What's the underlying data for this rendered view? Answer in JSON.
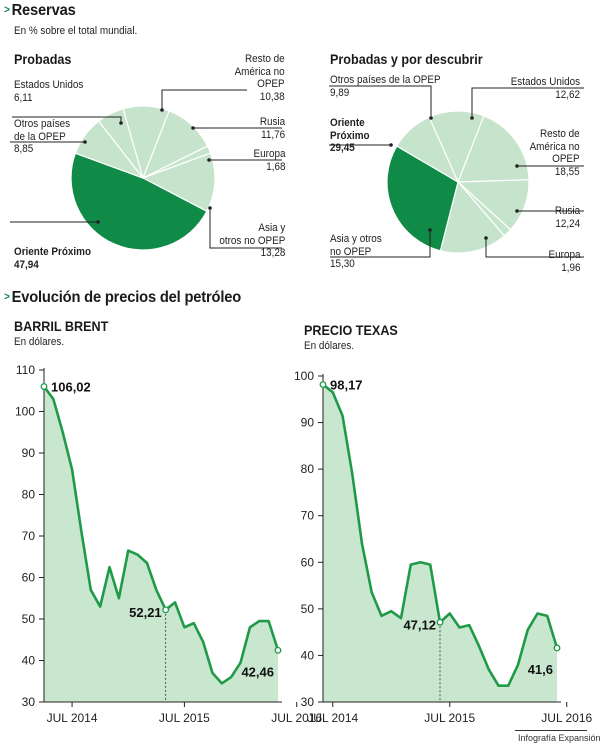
{
  "header": {
    "title": "Reservas",
    "subtitle": "En % sobre el total mundial.",
    "title2": "Evolución de precios del petróleo",
    "credit": "Infografía Expansión"
  },
  "colors": {
    "accent": "#0a8a4a",
    "dark_green": "#0f8a47",
    "light_green": "#c6e3cc",
    "slice_border": "#ffffff",
    "area_fill": "#c9e6cf",
    "line": "#1f9a48"
  },
  "chart_data": [
    {
      "type": "pie",
      "title": "Probadas",
      "slices": [
        {
          "label": "Estados Unidos",
          "value": 6.11,
          "display": "6,11"
        },
        {
          "label": "Resto de América no OPEP",
          "value": 10.38,
          "display": "10,38"
        },
        {
          "label": "Rusia",
          "value": 11.76,
          "display": "11,76"
        },
        {
          "label": "Europa",
          "value": 1.68,
          "display": "1,68"
        },
        {
          "label": "Asia y otros no OPEP",
          "value": 13.28,
          "display": "13,28"
        },
        {
          "label": "Oriente Próximo",
          "value": 47.94,
          "display": "47,94",
          "highlight": true
        },
        {
          "label": "Otros países de la OPEP",
          "value": 8.85,
          "display": "8,85"
        }
      ]
    },
    {
      "type": "pie",
      "title": "Probadas y por descubrir",
      "slices": [
        {
          "label": "Estados Unidos",
          "value": 12.62,
          "display": "12,62"
        },
        {
          "label": "Resto de América no OPEP",
          "value": 18.55,
          "display": "18,55"
        },
        {
          "label": "Rusia",
          "value": 12.24,
          "display": "12,24"
        },
        {
          "label": "Europa",
          "value": 1.96,
          "display": "1,96"
        },
        {
          "label": "Asia y otros no OPEP",
          "value": 15.3,
          "display": "15,30"
        },
        {
          "label": "Oriente Próximo",
          "value": 29.45,
          "display": "29,45",
          "highlight": true
        },
        {
          "label": "Otros países de la OPEP",
          "value": 9.89,
          "display": "9,89"
        }
      ]
    },
    {
      "type": "area",
      "title": "BARRIL BRENT",
      "ylabel": "En dólares.",
      "ylim": [
        30,
        110
      ],
      "yticks": [
        30,
        40,
        50,
        60,
        70,
        80,
        90,
        100,
        110
      ],
      "xticks": [
        "JUL 2014",
        "JUL 2015",
        "JUL 2016"
      ],
      "x_tick_index": [
        3,
        15,
        27
      ],
      "values": [
        106.02,
        103,
        95,
        86,
        71,
        57,
        53,
        62.5,
        55,
        66.5,
        65.5,
        63.5,
        57,
        52.21,
        54,
        48,
        49,
        44.5,
        37,
        34.5,
        36,
        39.5,
        48,
        49.5,
        49.5,
        42.46
      ],
      "annotations": [
        {
          "index": 0,
          "value": 106.02,
          "text": "106,02"
        },
        {
          "index": 13,
          "value": 52.21,
          "text": "52,21"
        },
        {
          "index": 25,
          "value": 42.46,
          "text": "42,46"
        }
      ]
    },
    {
      "type": "area",
      "title": "PRECIO TEXAS",
      "ylabel": "En dólares.",
      "ylim": [
        30,
        100
      ],
      "yticks": [
        30,
        40,
        50,
        60,
        70,
        80,
        90,
        100
      ],
      "xticks": [
        "JUL 2014",
        "JUL 2015",
        "JUL 2016"
      ],
      "x_tick_index": [
        1,
        13,
        25
      ],
      "values": [
        98.17,
        96.5,
        91.5,
        79,
        64,
        53.5,
        48.5,
        49.5,
        48,
        59.5,
        60,
        59.5,
        47.12,
        49,
        46,
        46.5,
        42,
        37,
        33.5,
        33.5,
        38,
        45.5,
        49,
        48.5,
        41.6
      ],
      "annotations": [
        {
          "index": 0,
          "value": 98.17,
          "text": "98,17"
        },
        {
          "index": 12,
          "value": 47.12,
          "text": "47,12"
        },
        {
          "index": 24,
          "value": 41.6,
          "text": "41,6"
        }
      ]
    }
  ]
}
